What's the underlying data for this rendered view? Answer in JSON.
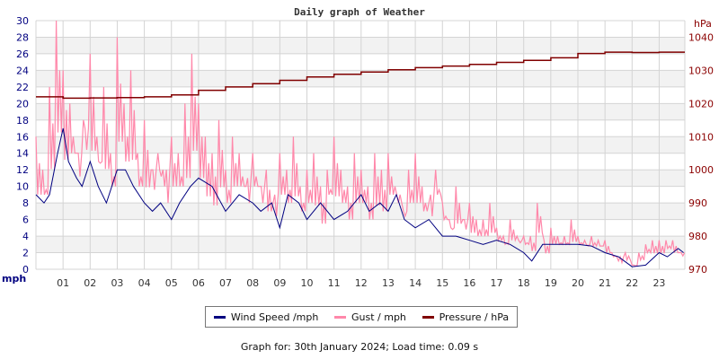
{
  "chart_data": {
    "type": "line",
    "title": "Daily graph of Weather",
    "xlabel": "",
    "x_ticks": [
      "01",
      "02",
      "03",
      "04",
      "05",
      "06",
      "07",
      "08",
      "09",
      "10",
      "11",
      "12",
      "13",
      "14",
      "15",
      "16",
      "17",
      "18",
      "19",
      "20",
      "21",
      "22",
      "23"
    ],
    "xlim": [
      0,
      24
    ],
    "y_left": {
      "label": "mph",
      "lim": [
        0,
        30
      ],
      "ticks": [
        "0",
        "2",
        "4",
        "6",
        "8",
        "10",
        "12",
        "14",
        "16",
        "18",
        "20",
        "22",
        "24",
        "26",
        "28",
        "30"
      ]
    },
    "y_right": {
      "label": "hPa",
      "lim": [
        970,
        1045
      ],
      "ticks": [
        "970",
        "980",
        "990",
        "1000",
        "1010",
        "1020",
        "1030",
        "1040"
      ]
    },
    "grid": true,
    "legend_position": "bottom",
    "colors": {
      "wind": "#000080",
      "gust": "#ff88aa",
      "pressure": "#800000",
      "band": "#f2f2f2",
      "grid": "#d4d4d4"
    },
    "series": [
      {
        "name": "Wind Speed /mph",
        "axis": "left",
        "x": [
          0,
          0.3,
          0.5,
          0.8,
          1.0,
          1.2,
          1.5,
          1.7,
          2.0,
          2.3,
          2.6,
          3.0,
          3.3,
          3.6,
          4.0,
          4.3,
          4.6,
          5.0,
          5.3,
          5.7,
          6.0,
          6.5,
          7.0,
          7.5,
          8.0,
          8.3,
          8.7,
          9.0,
          9.3,
          9.7,
          10.0,
          10.5,
          11.0,
          11.5,
          12.0,
          12.3,
          12.7,
          13.0,
          13.3,
          13.6,
          14.0,
          14.5,
          15.0,
          15.5,
          16.0,
          16.5,
          17.0,
          17.5,
          18.0,
          18.3,
          18.7,
          19.0,
          19.5,
          20.0,
          20.5,
          21.0,
          21.5,
          22.0,
          22.5,
          23.0,
          23.3,
          23.7,
          23.9
        ],
        "y": [
          9,
          8,
          9,
          14,
          17,
          13,
          11,
          10,
          13,
          10,
          8,
          12,
          12,
          10,
          8,
          7,
          8,
          6,
          8,
          10,
          11,
          10,
          7,
          9,
          8,
          7,
          8,
          5,
          9,
          8,
          6,
          8,
          6,
          7,
          9,
          7,
          8,
          7,
          9,
          6,
          5,
          6,
          4,
          4,
          3.5,
          3,
          3.5,
          3,
          2,
          1,
          3,
          3,
          3,
          3,
          2.8,
          2,
          1.5,
          0.3,
          0.5,
          2,
          1.5,
          2.5,
          2
        ]
      },
      {
        "name": "Gust / mph",
        "axis": "left",
        "x_step": 0.25,
        "y": [
          16,
          12,
          22,
          30,
          24,
          20,
          14,
          18,
          26,
          16,
          22,
          14,
          28,
          20,
          24,
          14,
          18,
          12,
          14,
          10,
          16,
          14,
          20,
          26,
          20,
          16,
          14,
          18,
          12,
          16,
          14,
          10,
          14,
          10,
          12,
          8,
          14,
          12,
          16,
          10,
          12,
          14,
          10,
          12,
          16,
          12,
          10,
          14,
          12,
          10,
          14,
          12,
          14,
          10,
          8,
          12,
          14,
          10,
          8,
          12,
          8,
          6,
          10,
          6,
          8,
          6,
          6,
          8,
          5,
          4,
          6,
          4,
          4,
          4,
          8,
          3.5,
          5,
          4,
          4,
          6,
          4,
          3.5,
          4,
          3.5,
          3.5,
          2,
          1,
          2,
          0.5,
          2,
          3,
          3.5,
          3.5,
          3.5,
          3.5,
          2
        ]
      },
      {
        "name": "Pressure / hPa",
        "axis": "right",
        "x": [
          0,
          1,
          2,
          3,
          4,
          5,
          6,
          7,
          8,
          9,
          10,
          11,
          12,
          13,
          14,
          15,
          16,
          17,
          18,
          19,
          20,
          21,
          22,
          23,
          24
        ],
        "y": [
          1022,
          1021.6,
          1021.7,
          1021.8,
          1022,
          1022.6,
          1024,
          1025,
          1026,
          1027,
          1028,
          1028.8,
          1029.5,
          1030.2,
          1030.8,
          1031.3,
          1031.8,
          1032.4,
          1033,
          1033.8,
          1035.1,
          1035.5,
          1035.4,
          1035.5,
          1035.5
        ]
      }
    ]
  },
  "footer": "Graph for: 30th January 2024; Load time: 0.09 s"
}
